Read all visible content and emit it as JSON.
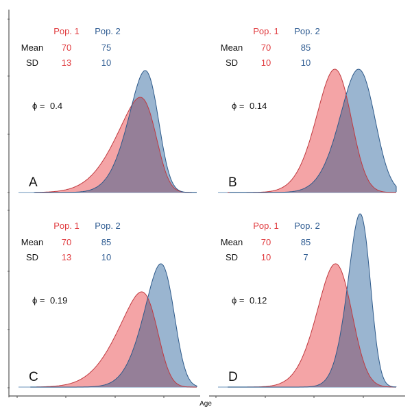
{
  "chart_data": {
    "type": "area",
    "title": "",
    "xlabel": "Age",
    "ylabel": "",
    "grid": false,
    "layout": "2x2 panels",
    "shape_note": "Panel text gives each population's mean and SD. The plotted curves are left-skewed, not normal. X tick labels are absent, so curve placement, spread and skew cannot be read in age units; curves are drawn as skew-normal approximations matched to the screenshot.",
    "series_colors": {
      "pop1_fill": "#F4A4A6",
      "pop1_line": "#C0393F",
      "pop2_fill": "#9AB5D0",
      "pop2_line": "#2E5A8A",
      "overlap": "#957F98",
      "pop1_text": "#E03A3E",
      "pop2_text": "#2F5C92"
    },
    "table_headers": {
      "pop1": "Pop. 1",
      "pop2": "Pop. 2",
      "mean_row": "Mean",
      "sd_row": "SD",
      "phi_label": "ϕ ="
    },
    "panels": [
      {
        "label": "A",
        "phi": "0.4",
        "pop1": {
          "mean": "70",
          "sd": "13"
        },
        "pop2": {
          "mean": "75",
          "sd": "10"
        }
      },
      {
        "label": "B",
        "phi": "0.14",
        "pop1": {
          "mean": "70",
          "sd": "10"
        },
        "pop2": {
          "mean": "85",
          "sd": "10"
        }
      },
      {
        "label": "C",
        "phi": "0.19",
        "pop1": {
          "mean": "70",
          "sd": "13"
        },
        "pop2": {
          "mean": "85",
          "sd": "10"
        }
      },
      {
        "label": "D",
        "phi": "0.12",
        "pop1": {
          "mean": "70",
          "sd": "10"
        },
        "pop2": {
          "mean": "85",
          "sd": "7"
        }
      }
    ]
  }
}
